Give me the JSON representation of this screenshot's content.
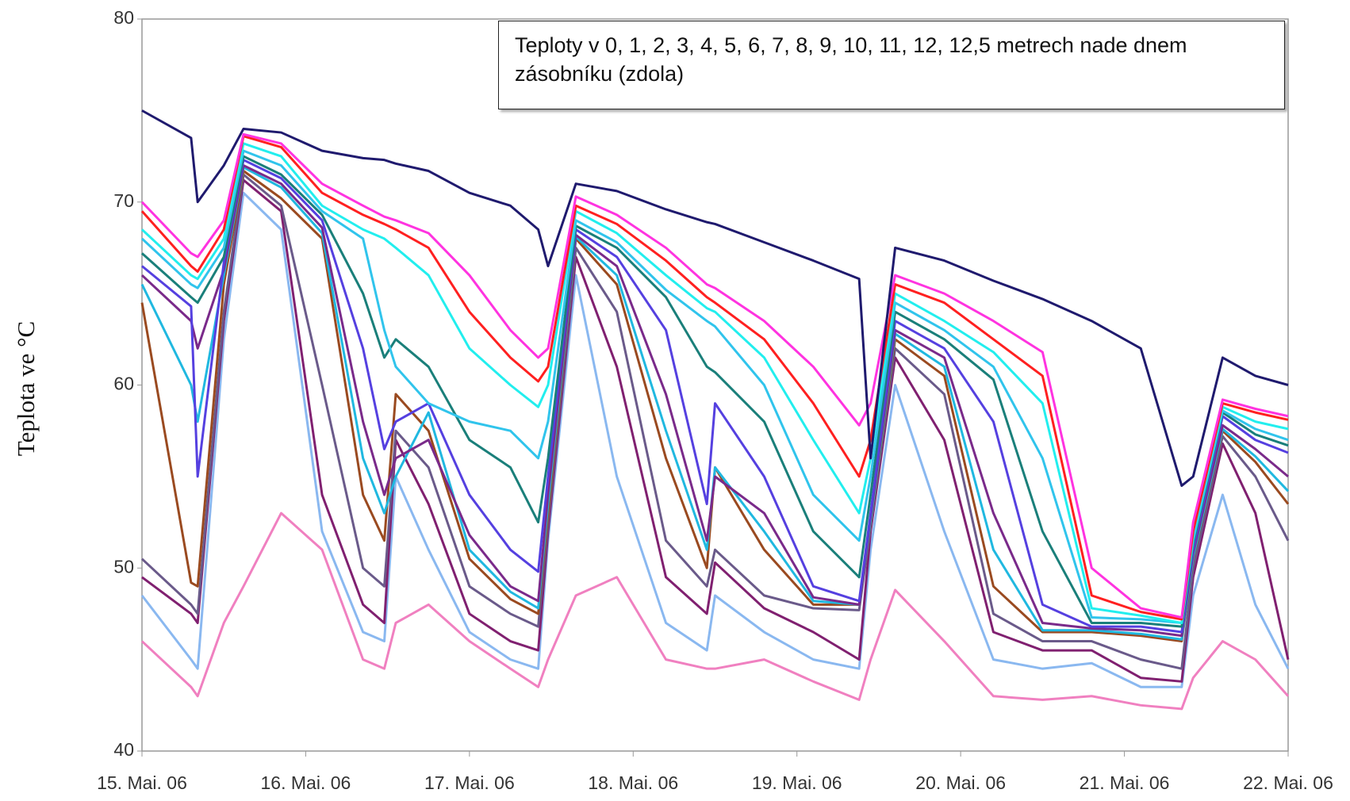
{
  "chart_data": {
    "type": "line",
    "annotation": "Teploty v 0, 1, 2, 3, 4, 5, 6, 7, 8, 9, 10, 11, 12, 12,5 metrech nade dnem zásobníku (zdola)",
    "y_label": "Teplota ve °C",
    "xlim": [
      0,
      7
    ],
    "xticks": [
      {
        "value": 0,
        "label": "15. Mai. 06"
      },
      {
        "value": 1,
        "label": "16. Mai. 06"
      },
      {
        "value": 2,
        "label": "17. Mai. 06"
      },
      {
        "value": 3,
        "label": "18. Mai. 06"
      },
      {
        "value": 4,
        "label": "19. Mai. 06"
      },
      {
        "value": 5,
        "label": "20. Mai. 06"
      },
      {
        "value": 6,
        "label": "21. Mai. 06"
      },
      {
        "value": 7,
        "label": "22. Mai. 06"
      }
    ],
    "ylim": [
      40,
      80
    ],
    "yticks": [
      40,
      50,
      60,
      70,
      80
    ],
    "grid": false,
    "x": [
      0,
      0.3,
      0.34,
      0.5,
      0.62,
      0.85,
      1.1,
      1.35,
      1.48,
      1.55,
      1.75,
      2.0,
      2.25,
      2.42,
      2.48,
      2.65,
      2.9,
      3.2,
      3.45,
      3.5,
      3.8,
      4.1,
      4.38,
      4.45,
      4.6,
      4.9,
      5.2,
      5.5,
      5.8,
      6.1,
      6.35,
      6.42,
      6.6,
      6.8,
      7.0
    ],
    "series": [
      {
        "color": "#1f1a6e",
        "values": [
          75,
          73.5,
          70,
          72,
          74,
          73.8,
          72.8,
          72.4,
          72.3,
          72.1,
          71.7,
          70.5,
          69.8,
          68.5,
          66.5,
          71,
          70.6,
          69.6,
          68.9,
          68.8,
          67.8,
          66.8,
          65.8,
          56,
          67.5,
          66.8,
          65.7,
          64.7,
          63.5,
          62,
          54.5,
          55,
          61.5,
          60.5,
          60
        ]
      },
      {
        "color": "#ff33e0",
        "values": [
          70,
          67.2,
          67,
          69,
          73.7,
          73.2,
          71,
          69.8,
          69.2,
          69,
          68.3,
          66,
          63,
          61.5,
          62,
          70.3,
          69.3,
          67.5,
          65.5,
          65.3,
          63.5,
          61,
          57.8,
          59,
          66,
          65,
          63.5,
          61.8,
          50,
          47.8,
          47.3,
          52.5,
          59.2,
          58.7,
          58.3
        ]
      },
      {
        "color": "#ff2020",
        "values": [
          69.5,
          66.5,
          66.2,
          68.5,
          73.6,
          73,
          70.5,
          69.3,
          68.8,
          68.5,
          67.5,
          64,
          61.5,
          60.2,
          61,
          69.8,
          68.8,
          66.8,
          64.8,
          64.5,
          62.5,
          59,
          55,
          57,
          65.5,
          64.5,
          62.5,
          60.5,
          48.5,
          47.6,
          47.2,
          52,
          59,
          58.5,
          58.1
        ]
      },
      {
        "color": "#22eeee",
        "values": [
          68.5,
          66,
          65.8,
          68,
          73.2,
          72.5,
          69.8,
          68.5,
          68,
          67.5,
          66,
          62,
          60,
          58.8,
          60,
          69.5,
          68.3,
          66,
          64.2,
          64,
          61.5,
          57,
          53,
          56,
          65,
          63.5,
          61.8,
          59,
          47.8,
          47.4,
          47,
          51.8,
          58.8,
          58,
          57.6
        ]
      },
      {
        "color": "#30c4ec",
        "values": [
          68,
          65.5,
          65.3,
          67.5,
          72.8,
          72,
          69.5,
          68,
          63,
          61,
          59,
          58,
          57.5,
          56,
          58,
          69,
          67.8,
          65.2,
          63.5,
          63.2,
          60,
          54,
          51.5,
          55,
          64.5,
          63,
          61,
          56,
          47.3,
          47.2,
          47,
          51.5,
          58.6,
          57.6,
          57
        ]
      },
      {
        "color": "#1a7f7a",
        "values": [
          67.2,
          64.8,
          64.5,
          67,
          72.5,
          71.5,
          69.3,
          65,
          61.5,
          62.5,
          61,
          57,
          55.5,
          52.5,
          56,
          68.7,
          67.5,
          64.8,
          61,
          60.7,
          58,
          52,
          49.5,
          54,
          64,
          62.5,
          60.3,
          52,
          47,
          47,
          46.8,
          51.3,
          58.5,
          57.3,
          56.7
        ]
      },
      {
        "color": "#5540e0",
        "values": [
          66.5,
          64.3,
          55,
          66.7,
          72.3,
          71.3,
          69,
          62,
          56.5,
          58,
          59,
          54,
          51,
          49.8,
          55,
          68.5,
          67,
          63,
          53.5,
          59,
          55,
          49,
          48.2,
          53,
          63.5,
          62,
          58,
          48,
          46.8,
          46.8,
          46.5,
          51,
          58.3,
          57,
          56.3
        ]
      },
      {
        "color": "#7a2a8a",
        "values": [
          66,
          63.5,
          62,
          66.3,
          72,
          71,
          68.6,
          58,
          54,
          56,
          57,
          51.8,
          49,
          48.2,
          54,
          68.2,
          66.5,
          59.5,
          51.5,
          55,
          53,
          48.4,
          48,
          52.8,
          63,
          61.5,
          53,
          47,
          46.7,
          46.6,
          46.3,
          50.8,
          57.8,
          56.5,
          55
        ]
      },
      {
        "color": "#20b8e0",
        "values": [
          65.5,
          60,
          58,
          66,
          71.9,
          70.8,
          68.3,
          56,
          53,
          55,
          58.5,
          51,
          48.7,
          47.8,
          53.5,
          68.1,
          66,
          57.5,
          51,
          55.5,
          52,
          48.2,
          48,
          52.6,
          62.8,
          61,
          51,
          46.6,
          46.6,
          46.4,
          46.1,
          50.6,
          57.6,
          56.1,
          54.2
        ]
      },
      {
        "color": "#9a4a20",
        "values": [
          64.5,
          49.2,
          49,
          65.5,
          71.7,
          70.2,
          68,
          54,
          51.5,
          59.5,
          57.5,
          50.5,
          48.3,
          47.5,
          53,
          68,
          65.5,
          56,
          50,
          55.5,
          51,
          48,
          48,
          52.5,
          62.5,
          60.5,
          49,
          46.5,
          46.5,
          46.3,
          46,
          50.5,
          57.5,
          55.8,
          53.5
        ]
      },
      {
        "color": "#6a5a8a",
        "values": [
          50.5,
          48,
          47.5,
          64,
          71.5,
          69.8,
          60,
          50,
          49,
          57.5,
          55.5,
          49,
          47.5,
          46.8,
          52.5,
          67.5,
          64,
          51.5,
          49,
          51,
          48.5,
          47.8,
          47.7,
          52.3,
          62,
          59.5,
          47.5,
          46,
          46,
          45,
          44.5,
          50,
          57.2,
          55,
          51.5
        ]
      },
      {
        "color": "#802070",
        "values": [
          49.5,
          47.5,
          47,
          63.5,
          71.2,
          69.5,
          54,
          48,
          47,
          57,
          53.5,
          47.5,
          46,
          45.5,
          52,
          67,
          61,
          49.5,
          47.5,
          50.3,
          47.8,
          46.5,
          45,
          52,
          61.5,
          57,
          46.5,
          45.5,
          45.5,
          44,
          43.8,
          49.5,
          56.8,
          53,
          45
        ]
      },
      {
        "color": "#8ab8f0",
        "values": [
          48.5,
          45,
          44.5,
          62.5,
          70.5,
          68.5,
          52,
          46.5,
          46,
          55,
          51,
          46.5,
          45,
          44.5,
          51.5,
          66,
          55,
          47,
          45.5,
          48.5,
          46.5,
          45,
          44.5,
          51,
          60,
          52,
          45,
          44.5,
          44.8,
          43.5,
          43.5,
          48.5,
          54,
          48,
          44.5
        ]
      },
      {
        "color": "#f080c0",
        "values": [
          46,
          43.5,
          43,
          47,
          49,
          53,
          51,
          45,
          44.5,
          47,
          48,
          46,
          44.5,
          43.5,
          45,
          48.5,
          49.5,
          45,
          44.5,
          44.5,
          45,
          43.8,
          42.8,
          45,
          48.8,
          46,
          43,
          42.8,
          43,
          42.5,
          42.3,
          44,
          46,
          45,
          43
        ]
      }
    ]
  }
}
